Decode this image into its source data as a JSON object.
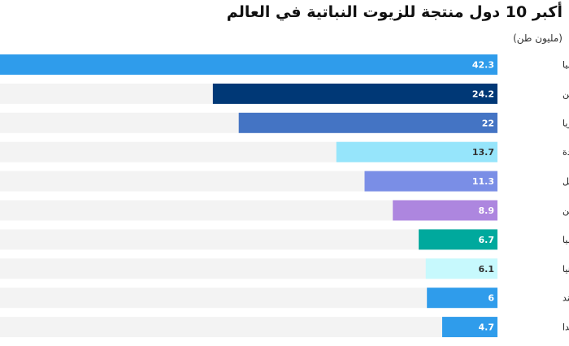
{
  "chart_data": {
    "type": "bar",
    "orientation": "horizontal",
    "title": "أكبر 10 دول منتجة للزيوت النباتية في العالم",
    "subtitle": "(مليون طن)",
    "categories": [
      "إندونيسيا",
      "الصين",
      "ماليزيا",
      "الولايات المتحدة",
      "البرازيل",
      "الأرجنتين",
      "روسيا",
      "أوكرانيا",
      "الهند",
      "كندا"
    ],
    "values": [
      42.3,
      24.2,
      22,
      13.7,
      11.3,
      8.9,
      6.7,
      6.1,
      6,
      4.7
    ],
    "value_labels": [
      "42.3",
      "24.2",
      "22",
      "13.7",
      "11.3",
      "8.9",
      "6.7",
      "6.1",
      "6",
      "4.7"
    ],
    "colors": [
      "#2f9ceb",
      "#003876",
      "#4474c4",
      "#96e5fb",
      "#7a8ee6",
      "#ad86df",
      "#00a99d",
      "#c7f9fd",
      "#2f9ceb",
      "#2f9ceb"
    ],
    "label_colors": [
      "#ffffff",
      "#ffffff",
      "#ffffff",
      "#333333",
      "#ffffff",
      "#ffffff",
      "#ffffff",
      "#333333",
      "#ffffff",
      "#ffffff"
    ],
    "track_color": "#f3f3f3",
    "xlim": [
      0,
      42.3
    ],
    "bar_direction": "right-to-left",
    "grid": false,
    "legend": "none"
  }
}
